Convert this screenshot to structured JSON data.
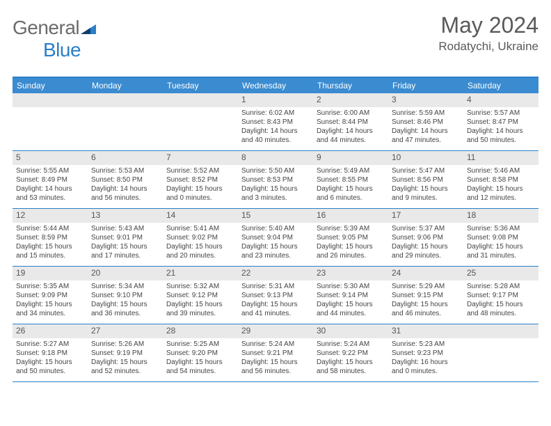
{
  "logo": {
    "part1": "General",
    "part2": "Blue"
  },
  "title": "May 2024",
  "location": "Rodatychi, Ukraine",
  "day_headers": [
    "Sunday",
    "Monday",
    "Tuesday",
    "Wednesday",
    "Thursday",
    "Friday",
    "Saturday"
  ],
  "colors": {
    "header_bg": "#3b8bd0",
    "rule": "#2a7fc9",
    "daynum_bg": "#e9e9e9",
    "text": "#444444"
  },
  "weeks": [
    [
      null,
      null,
      null,
      {
        "d": "1",
        "sr": "Sunrise: 6:02 AM",
        "ss": "Sunset: 8:43 PM",
        "dl1": "Daylight: 14 hours",
        "dl2": "and 40 minutes."
      },
      {
        "d": "2",
        "sr": "Sunrise: 6:00 AM",
        "ss": "Sunset: 8:44 PM",
        "dl1": "Daylight: 14 hours",
        "dl2": "and 44 minutes."
      },
      {
        "d": "3",
        "sr": "Sunrise: 5:59 AM",
        "ss": "Sunset: 8:46 PM",
        "dl1": "Daylight: 14 hours",
        "dl2": "and 47 minutes."
      },
      {
        "d": "4",
        "sr": "Sunrise: 5:57 AM",
        "ss": "Sunset: 8:47 PM",
        "dl1": "Daylight: 14 hours",
        "dl2": "and 50 minutes."
      }
    ],
    [
      {
        "d": "5",
        "sr": "Sunrise: 5:55 AM",
        "ss": "Sunset: 8:49 PM",
        "dl1": "Daylight: 14 hours",
        "dl2": "and 53 minutes."
      },
      {
        "d": "6",
        "sr": "Sunrise: 5:53 AM",
        "ss": "Sunset: 8:50 PM",
        "dl1": "Daylight: 14 hours",
        "dl2": "and 56 minutes."
      },
      {
        "d": "7",
        "sr": "Sunrise: 5:52 AM",
        "ss": "Sunset: 8:52 PM",
        "dl1": "Daylight: 15 hours",
        "dl2": "and 0 minutes."
      },
      {
        "d": "8",
        "sr": "Sunrise: 5:50 AM",
        "ss": "Sunset: 8:53 PM",
        "dl1": "Daylight: 15 hours",
        "dl2": "and 3 minutes."
      },
      {
        "d": "9",
        "sr": "Sunrise: 5:49 AM",
        "ss": "Sunset: 8:55 PM",
        "dl1": "Daylight: 15 hours",
        "dl2": "and 6 minutes."
      },
      {
        "d": "10",
        "sr": "Sunrise: 5:47 AM",
        "ss": "Sunset: 8:56 PM",
        "dl1": "Daylight: 15 hours",
        "dl2": "and 9 minutes."
      },
      {
        "d": "11",
        "sr": "Sunrise: 5:46 AM",
        "ss": "Sunset: 8:58 PM",
        "dl1": "Daylight: 15 hours",
        "dl2": "and 12 minutes."
      }
    ],
    [
      {
        "d": "12",
        "sr": "Sunrise: 5:44 AM",
        "ss": "Sunset: 8:59 PM",
        "dl1": "Daylight: 15 hours",
        "dl2": "and 15 minutes."
      },
      {
        "d": "13",
        "sr": "Sunrise: 5:43 AM",
        "ss": "Sunset: 9:01 PM",
        "dl1": "Daylight: 15 hours",
        "dl2": "and 17 minutes."
      },
      {
        "d": "14",
        "sr": "Sunrise: 5:41 AM",
        "ss": "Sunset: 9:02 PM",
        "dl1": "Daylight: 15 hours",
        "dl2": "and 20 minutes."
      },
      {
        "d": "15",
        "sr": "Sunrise: 5:40 AM",
        "ss": "Sunset: 9:04 PM",
        "dl1": "Daylight: 15 hours",
        "dl2": "and 23 minutes."
      },
      {
        "d": "16",
        "sr": "Sunrise: 5:39 AM",
        "ss": "Sunset: 9:05 PM",
        "dl1": "Daylight: 15 hours",
        "dl2": "and 26 minutes."
      },
      {
        "d": "17",
        "sr": "Sunrise: 5:37 AM",
        "ss": "Sunset: 9:06 PM",
        "dl1": "Daylight: 15 hours",
        "dl2": "and 29 minutes."
      },
      {
        "d": "18",
        "sr": "Sunrise: 5:36 AM",
        "ss": "Sunset: 9:08 PM",
        "dl1": "Daylight: 15 hours",
        "dl2": "and 31 minutes."
      }
    ],
    [
      {
        "d": "19",
        "sr": "Sunrise: 5:35 AM",
        "ss": "Sunset: 9:09 PM",
        "dl1": "Daylight: 15 hours",
        "dl2": "and 34 minutes."
      },
      {
        "d": "20",
        "sr": "Sunrise: 5:34 AM",
        "ss": "Sunset: 9:10 PM",
        "dl1": "Daylight: 15 hours",
        "dl2": "and 36 minutes."
      },
      {
        "d": "21",
        "sr": "Sunrise: 5:32 AM",
        "ss": "Sunset: 9:12 PM",
        "dl1": "Daylight: 15 hours",
        "dl2": "and 39 minutes."
      },
      {
        "d": "22",
        "sr": "Sunrise: 5:31 AM",
        "ss": "Sunset: 9:13 PM",
        "dl1": "Daylight: 15 hours",
        "dl2": "and 41 minutes."
      },
      {
        "d": "23",
        "sr": "Sunrise: 5:30 AM",
        "ss": "Sunset: 9:14 PM",
        "dl1": "Daylight: 15 hours",
        "dl2": "and 44 minutes."
      },
      {
        "d": "24",
        "sr": "Sunrise: 5:29 AM",
        "ss": "Sunset: 9:15 PM",
        "dl1": "Daylight: 15 hours",
        "dl2": "and 46 minutes."
      },
      {
        "d": "25",
        "sr": "Sunrise: 5:28 AM",
        "ss": "Sunset: 9:17 PM",
        "dl1": "Daylight: 15 hours",
        "dl2": "and 48 minutes."
      }
    ],
    [
      {
        "d": "26",
        "sr": "Sunrise: 5:27 AM",
        "ss": "Sunset: 9:18 PM",
        "dl1": "Daylight: 15 hours",
        "dl2": "and 50 minutes."
      },
      {
        "d": "27",
        "sr": "Sunrise: 5:26 AM",
        "ss": "Sunset: 9:19 PM",
        "dl1": "Daylight: 15 hours",
        "dl2": "and 52 minutes."
      },
      {
        "d": "28",
        "sr": "Sunrise: 5:25 AM",
        "ss": "Sunset: 9:20 PM",
        "dl1": "Daylight: 15 hours",
        "dl2": "and 54 minutes."
      },
      {
        "d": "29",
        "sr": "Sunrise: 5:24 AM",
        "ss": "Sunset: 9:21 PM",
        "dl1": "Daylight: 15 hours",
        "dl2": "and 56 minutes."
      },
      {
        "d": "30",
        "sr": "Sunrise: 5:24 AM",
        "ss": "Sunset: 9:22 PM",
        "dl1": "Daylight: 15 hours",
        "dl2": "and 58 minutes."
      },
      {
        "d": "31",
        "sr": "Sunrise: 5:23 AM",
        "ss": "Sunset: 9:23 PM",
        "dl1": "Daylight: 16 hours",
        "dl2": "and 0 minutes."
      },
      null
    ]
  ]
}
